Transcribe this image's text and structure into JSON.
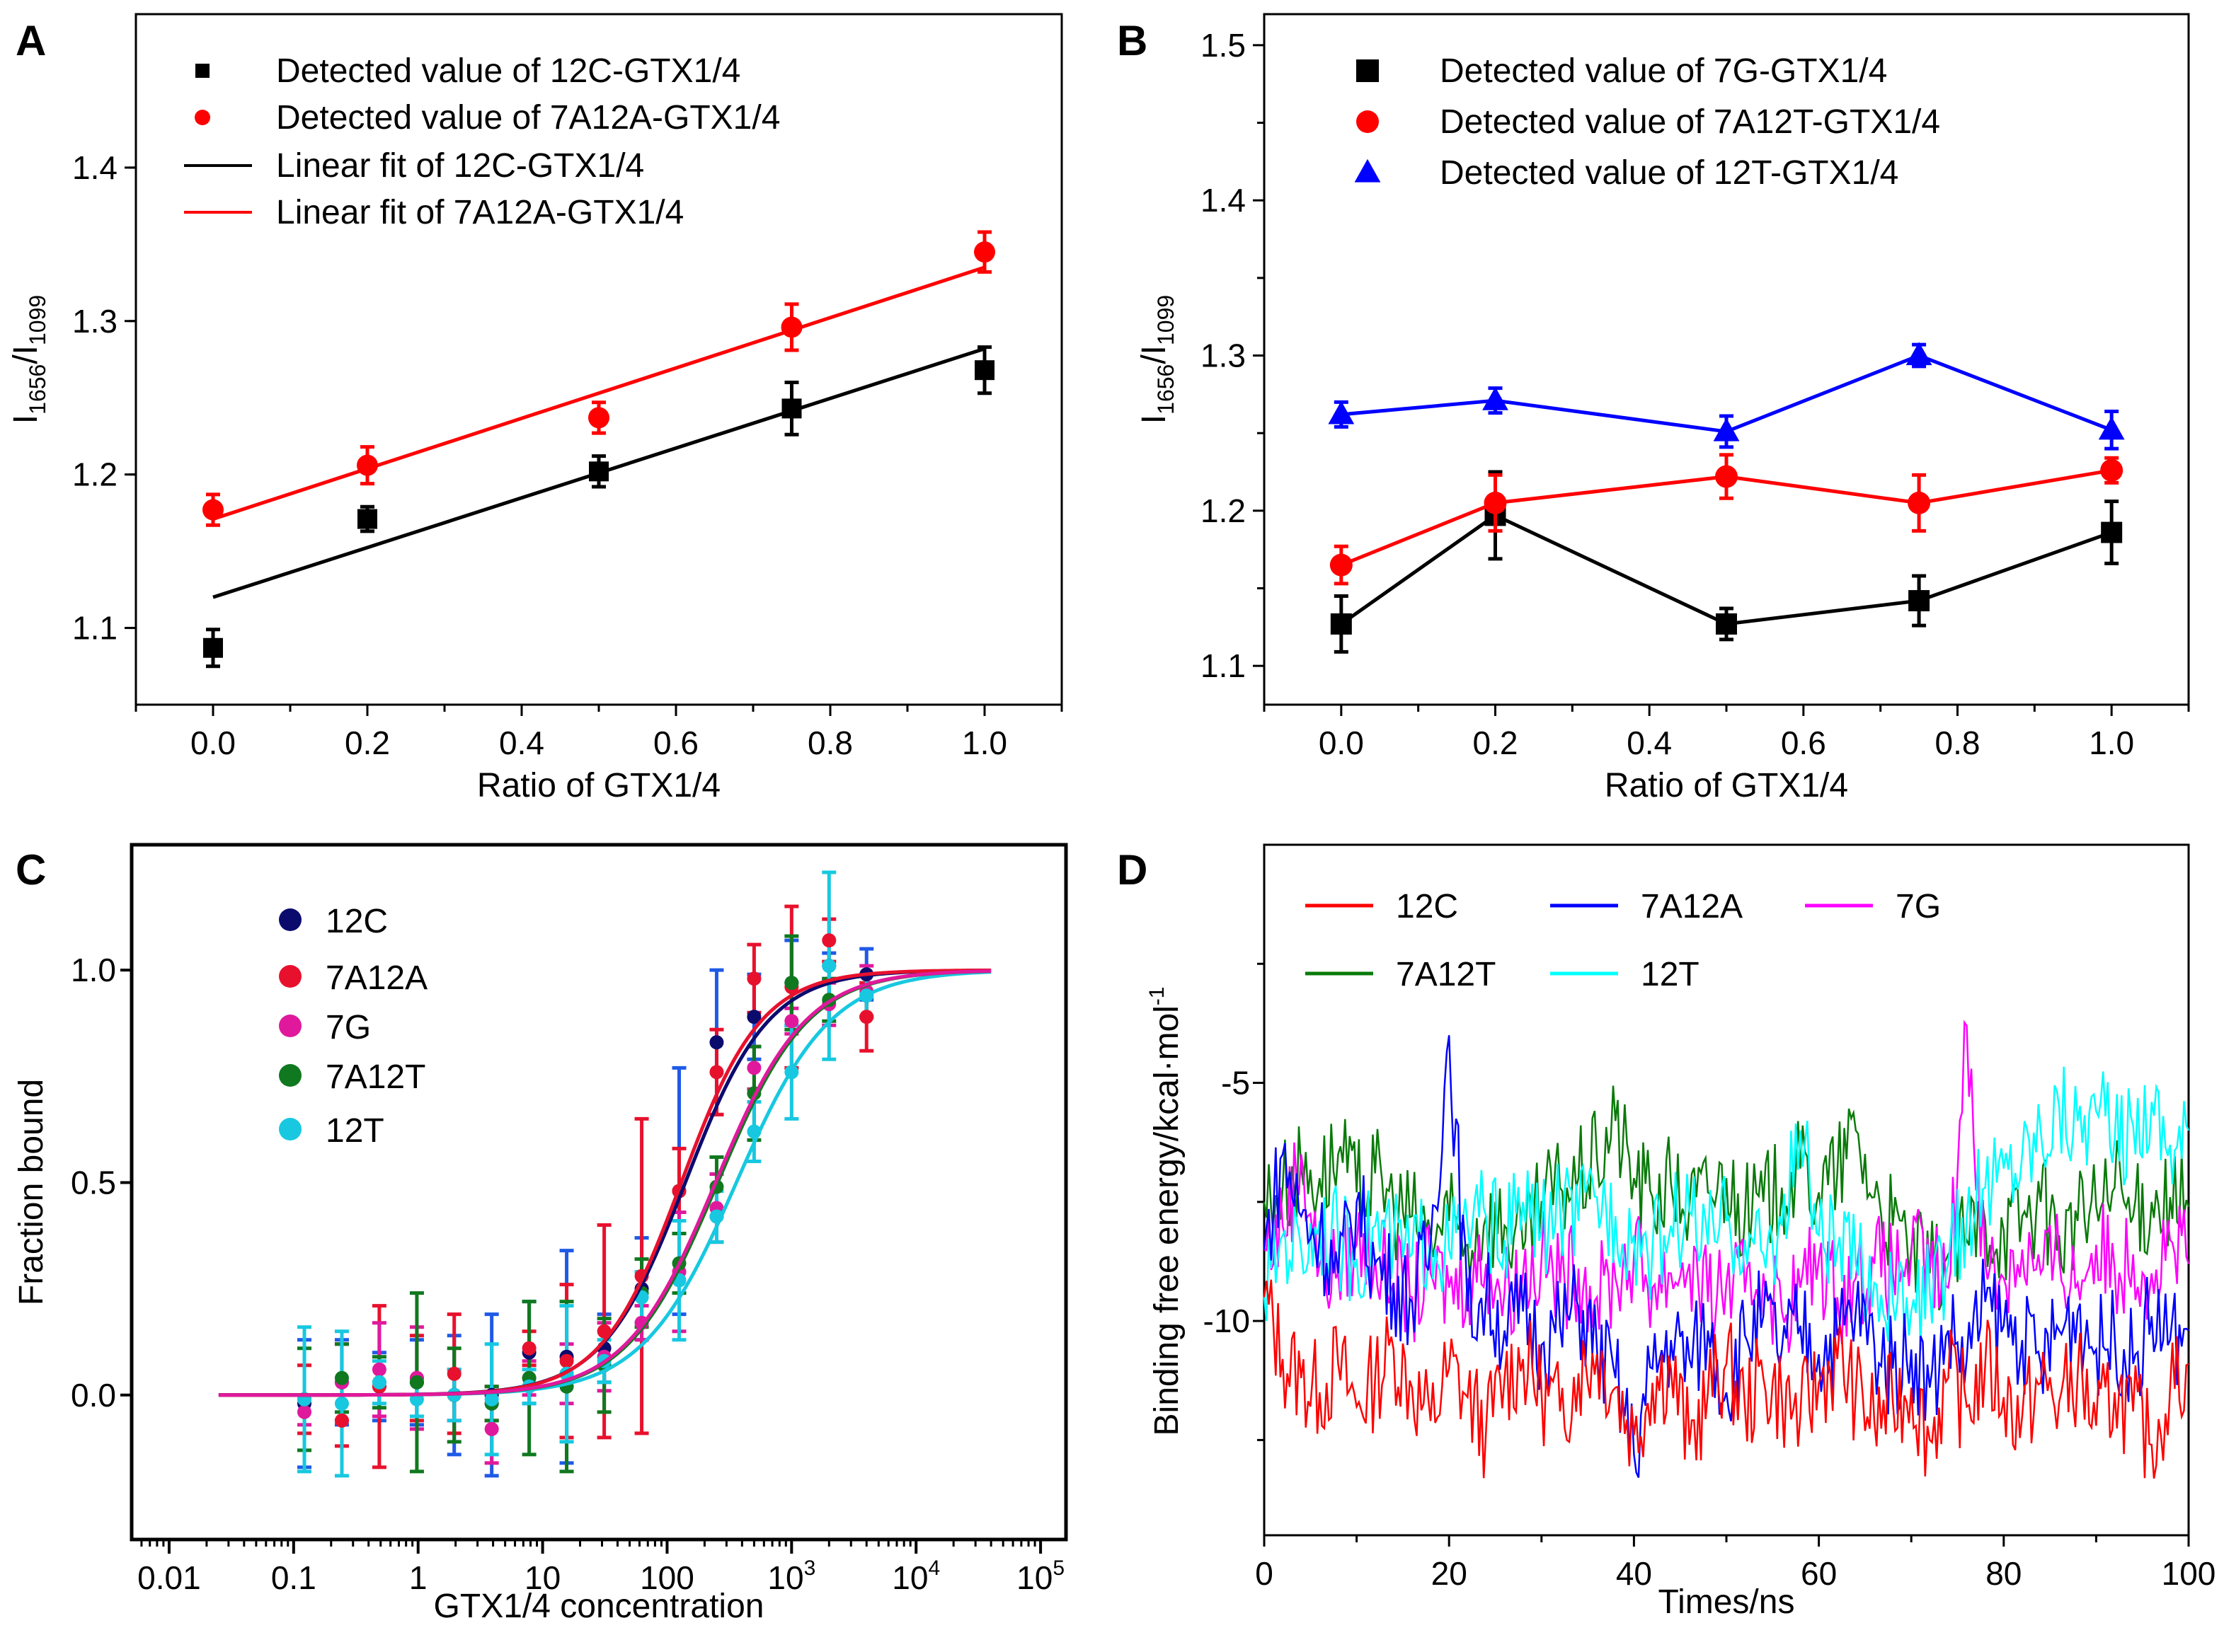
{
  "chart_data": [
    {
      "panel": "A",
      "type": "scatter",
      "xlabel": "Ratio of GTX1/4",
      "ylabel": {
        "main": "I",
        "sub1": "1656",
        "mid": "/I",
        "sub2": "1099"
      },
      "xlim": [
        -0.1,
        1.1
      ],
      "ylim": [
        1.05,
        1.5
      ],
      "xticks": [
        "0.0",
        "0.2",
        "0.4",
        "0.6",
        "0.8",
        "1.0"
      ],
      "yticks": [
        "1.1",
        "1.2",
        "1.3",
        "1.4"
      ],
      "x": [
        0.0,
        0.2,
        0.5,
        0.75,
        1.0
      ],
      "series": [
        {
          "name": "Detected value of 12C-GTX1/4",
          "marker": "square",
          "color": "#000000",
          "values": [
            1.087,
            1.171,
            1.202,
            1.243,
            1.268
          ],
          "errors": [
            0.012,
            0.008,
            0.01,
            0.017,
            0.015
          ]
        },
        {
          "name": "Detected value of 7A12A-GTX1/4",
          "marker": "circle",
          "color": "#ff0000",
          "values": [
            1.177,
            1.206,
            1.237,
            1.296,
            1.345
          ],
          "errors": [
            0.01,
            0.012,
            0.01,
            0.015,
            0.013
          ]
        }
      ],
      "fits": [
        {
          "name": "Linear fit of 12C-GTX1/4",
          "color": "#000000",
          "x": [
            0.0,
            1.0
          ],
          "y": [
            1.12,
            1.282
          ]
        },
        {
          "name": "Linear fit of 7A12A-GTX1/4",
          "color": "#ff0000",
          "x": [
            0.0,
            1.0
          ],
          "y": [
            1.171,
            1.335
          ]
        }
      ],
      "legend": "top-left"
    },
    {
      "panel": "B",
      "type": "line",
      "xlabel": "Ratio of GTX1/4",
      "ylabel": {
        "main": "I",
        "sub1": "1656",
        "mid": "/I",
        "sub2": "1099"
      },
      "xlim": [
        -0.1,
        1.1
      ],
      "ylim": [
        1.075,
        1.52
      ],
      "xticks": [
        "0.0",
        "0.2",
        "0.4",
        "0.6",
        "0.8",
        "1.0"
      ],
      "yticks": [
        "1.1",
        "1.2",
        "1.3",
        "1.4",
        "1.5"
      ],
      "x": [
        0.0,
        0.2,
        0.5,
        0.75,
        1.0
      ],
      "series": [
        {
          "name": "Detected value of 7G-GTX1/4",
          "marker": "square",
          "color": "#000000",
          "values": [
            1.127,
            1.197,
            1.127,
            1.142,
            1.186
          ],
          "errors": [
            0.018,
            0.028,
            0.01,
            0.016,
            0.02
          ]
        },
        {
          "name": "Detected value of 7A12T-GTX1/4",
          "marker": "circle",
          "color": "#ff0000",
          "values": [
            1.165,
            1.205,
            1.222,
            1.205,
            1.226
          ],
          "errors": [
            0.012,
            0.018,
            0.014,
            0.018,
            0.008
          ]
        },
        {
          "name": "Detected value of 12T-GTX1/4",
          "marker": "triangle",
          "color": "#0000ff",
          "values": [
            1.262,
            1.271,
            1.251,
            1.3,
            1.252
          ],
          "errors": [
            0.008,
            0.008,
            0.01,
            0.007,
            0.012
          ]
        }
      ],
      "legend": "top-left"
    },
    {
      "panel": "C",
      "type": "scatter",
      "xscale": "log",
      "xlabel": "GTX1/4 concentration",
      "ylabel": "Fraction bound",
      "xlim": [
        0.005,
        160000
      ],
      "ylim": [
        -0.34,
        1.295
      ],
      "xticks": [
        {
          "value": 0.01,
          "base": "0.01",
          "exp": ""
        },
        {
          "value": 0.1,
          "base": "0.1",
          "exp": ""
        },
        {
          "value": 1,
          "base": "1",
          "exp": ""
        },
        {
          "value": 10,
          "base": "10",
          "exp": ""
        },
        {
          "value": 100,
          "base": "100",
          "exp": ""
        },
        {
          "value": 1000,
          "base": "10",
          "exp": "3"
        },
        {
          "value": 10000,
          "base": "10",
          "exp": "4"
        },
        {
          "value": 100000,
          "base": "10",
          "exp": "5"
        }
      ],
      "yticks": [
        "0.0",
        "0.5",
        "1.0"
      ],
      "x": [
        0.122,
        0.244,
        0.488,
        0.977,
        1.95,
        3.9,
        7.8,
        15.6,
        31.25,
        62.5,
        125,
        250,
        500,
        1000,
        2000,
        4000
      ],
      "series": [
        {
          "name": "12C",
          "color": "#0b0b6e",
          "error_color": "#1f5ae6",
          "kd": 140,
          "hill": 1.3,
          "values": [
            -0.02,
            0.03,
            0.02,
            0.03,
            0.0,
            0.0,
            0.1,
            0.09,
            0.11,
            0.25,
            0.48,
            0.83,
            0.89,
            0.97,
            1.01,
            0.99
          ],
          "errors": [
            0.15,
            0.1,
            0.08,
            0.1,
            0.14,
            0.19,
            0.12,
            0.25,
            0.08,
            0.12,
            0.29,
            0.17,
            0.1,
            0.1,
            0.03,
            0.06
          ]
        },
        {
          "name": "7A12A",
          "color": "#e8112d",
          "error_color": "#e8112d",
          "kd": 130,
          "hill": 1.35,
          "values": [
            -0.01,
            -0.06,
            0.02,
            0.04,
            0.05,
            -0.02,
            0.11,
            0.08,
            0.15,
            0.28,
            0.48,
            0.76,
            0.98,
            0.96,
            1.07,
            0.89
          ],
          "errors": [
            0.08,
            0.06,
            0.19,
            0.1,
            0.14,
            0.04,
            0.04,
            0.18,
            0.25,
            0.37,
            0.1,
            0.1,
            0.08,
            0.19,
            0.05,
            0.08
          ]
        },
        {
          "name": "7G",
          "color": "#e0199c",
          "error_color": "#e0199c",
          "kd": 245,
          "hill": 1.2,
          "values": [
            -0.04,
            0.03,
            0.06,
            0.04,
            0.0,
            -0.08,
            0.04,
            0.05,
            0.09,
            0.17,
            0.29,
            0.44,
            0.77,
            0.88,
            0.92,
            0.95
          ],
          "errors": [
            0.03,
            0.09,
            0.11,
            0.12,
            0.06,
            0.08,
            0.04,
            0.07,
            0.08,
            0.04,
            0.14,
            0.08,
            0.05,
            0.03,
            0.05,
            0.06
          ]
        },
        {
          "name": "7A12T",
          "color": "#10781f",
          "error_color": "#10781f",
          "kd": 255,
          "hill": 1.2,
          "values": [
            -0.01,
            0.04,
            0.03,
            0.03,
            0.0,
            -0.02,
            0.04,
            0.02,
            0.07,
            0.24,
            0.31,
            0.49,
            0.71,
            0.97,
            0.93,
            0.94
          ],
          "errors": [
            0.12,
            0.08,
            0.06,
            0.21,
            0.11,
            0.04,
            0.18,
            0.2,
            0.11,
            0.08,
            0.07,
            0.07,
            0.11,
            0.11,
            0.05,
            0.05
          ]
        },
        {
          "name": "12T",
          "color": "#17c8e0",
          "error_color": "#17c8e0",
          "kd": 360,
          "hill": 1.15,
          "values": [
            -0.01,
            -0.02,
            0.03,
            -0.01,
            0.0,
            -0.01,
            0.02,
            0.05,
            0.08,
            0.23,
            0.27,
            0.42,
            0.62,
            0.76,
            1.01,
            0.94
          ],
          "errors": [
            0.17,
            0.17,
            0.05,
            0.04,
            0.06,
            0.13,
            0.04,
            0.16,
            0.05,
            0.06,
            0.14,
            0.06,
            0.07,
            0.11,
            0.22,
            0.05
          ]
        }
      ],
      "fit_range": [
        0.025,
        40000
      ],
      "legend": "top-left"
    },
    {
      "panel": "D",
      "type": "line",
      "xlabel": "Times/ns",
      "ylabel": {
        "main": "Binding free energy/kcal·mol",
        "sup": "-1"
      },
      "xlim": [
        0,
        100
      ],
      "ylim": [
        -14.5,
        0
      ],
      "xticks": [
        "0",
        "20",
        "40",
        "60",
        "80",
        "100"
      ],
      "yticks": [
        "-5",
        "-10"
      ],
      "x_step": 2,
      "series": [
        {
          "name": "12C",
          "color": "#ff0000",
          "values": [
            -9.5,
            -10.8,
            -11.2,
            -11.5,
            -10.9,
            -11.8,
            -11.2,
            -10.6,
            -11.4,
            -12.1,
            -11.0,
            -11.6,
            -12.3,
            -11.2,
            -10.8,
            -11.5,
            -11.9,
            -11.1,
            -10.7,
            -11.4,
            -12.4,
            -11.3,
            -11.0,
            -12.6,
            -11.5,
            -10.9,
            -11.8,
            -11.2,
            -11.6,
            -12.0,
            -11.3,
            -10.8,
            -11.5,
            -12.1,
            -11.7,
            -11.4,
            -12.5,
            -11.2,
            -11.8,
            -10.9,
            -11.6,
            -12.0,
            -11.3,
            -11.7,
            -11.1,
            -12.2,
            -11.5,
            -11.9,
            -12.6,
            -11.4,
            -10.9
          ]
        },
        {
          "name": "7A12A",
          "color": "#0000ff",
          "values": [
            -8.5,
            -6.5,
            -7.8,
            -8.2,
            -9.0,
            -7.5,
            -8.8,
            -9.2,
            -9.6,
            -8.4,
            -4.0,
            -9.8,
            -9.5,
            -10.2,
            -9.8,
            -10.5,
            -10.1,
            -9.7,
            -10.6,
            -11.2,
            -12.8,
            -11.0,
            -10.4,
            -10.8,
            -10.2,
            -11.5,
            -10.3,
            -9.9,
            -10.6,
            -10.1,
            -10.7,
            -10.3,
            -9.8,
            -10.5,
            -11.0,
            -10.6,
            -11.4,
            -10.2,
            -10.8,
            -9.6,
            -10.1,
            -10.4,
            -10.9,
            -10.2,
            -9.8,
            -10.6,
            -10.3,
            -10.9,
            -9.9,
            -10.4,
            -10.2
          ]
        },
        {
          "name": "7G",
          "color": "#ff00ff",
          "values": [
            -8.5,
            -8.0,
            -6.5,
            -8.8,
            -9.0,
            -8.4,
            -8.7,
            -9.2,
            -9.5,
            -9.0,
            -9.3,
            -9.1,
            -8.8,
            -9.4,
            -9.0,
            -8.7,
            -9.2,
            -8.9,
            -9.5,
            -9.1,
            -8.6,
            -9.3,
            -9.0,
            -8.8,
            -9.6,
            -9.2,
            -9.4,
            -9.0,
            -9.8,
            -9.3,
            -8.7,
            -9.5,
            -9.1,
            -8.8,
            -9.0,
            -8.6,
            -8.9,
            -9.3,
            -3.8,
            -8.8,
            -9.1,
            -8.5,
            -9.0,
            -8.7,
            -9.2,
            -8.4,
            -8.9,
            -8.6,
            -9.0,
            -8.3,
            -8.8
          ]
        },
        {
          "name": "7A12T",
          "color": "#0a7a0a",
          "values": [
            -7.5,
            -7.2,
            -6.8,
            -7.0,
            -6.5,
            -7.3,
            -6.9,
            -7.6,
            -7.8,
            -8.2,
            -7.9,
            -8.4,
            -7.8,
            -8.0,
            -8.5,
            -7.5,
            -7.2,
            -7.0,
            -6.6,
            -5.8,
            -7.0,
            -7.4,
            -7.1,
            -7.6,
            -7.3,
            -7.0,
            -7.8,
            -7.5,
            -7.2,
            -6.8,
            -7.3,
            -6.9,
            -6.0,
            -7.4,
            -8.0,
            -8.5,
            -9.0,
            -8.6,
            -8.3,
            -7.9,
            -8.1,
            -7.8,
            -7.5,
            -8.2,
            -7.9,
            -7.6,
            -7.2,
            -7.8,
            -7.5,
            -7.4,
            -7.6
          ]
        },
        {
          "name": "12T",
          "color": "#00ffff",
          "values": [
            -9.5,
            -8.2,
            -8.5,
            -7.9,
            -8.3,
            -8.7,
            -8.0,
            -8.4,
            -8.6,
            -8.2,
            -8.5,
            -8.0,
            -7.8,
            -8.3,
            -7.5,
            -8.1,
            -7.6,
            -7.9,
            -7.4,
            -7.8,
            -8.2,
            -8.5,
            -8.0,
            -7.7,
            -8.4,
            -7.9,
            -8.3,
            -8.6,
            -8.0,
            -6.0,
            -8.2,
            -8.5,
            -8.8,
            -9.2,
            -9.6,
            -9.8,
            -9.4,
            -8.8,
            -7.8,
            -7.2,
            -6.8,
            -6.5,
            -6.0,
            -5.5,
            -5.8,
            -5.6,
            -6.2,
            -5.9,
            -5.4,
            -6.3,
            -6.0
          ]
        }
      ],
      "legend": "top-left"
    }
  ]
}
